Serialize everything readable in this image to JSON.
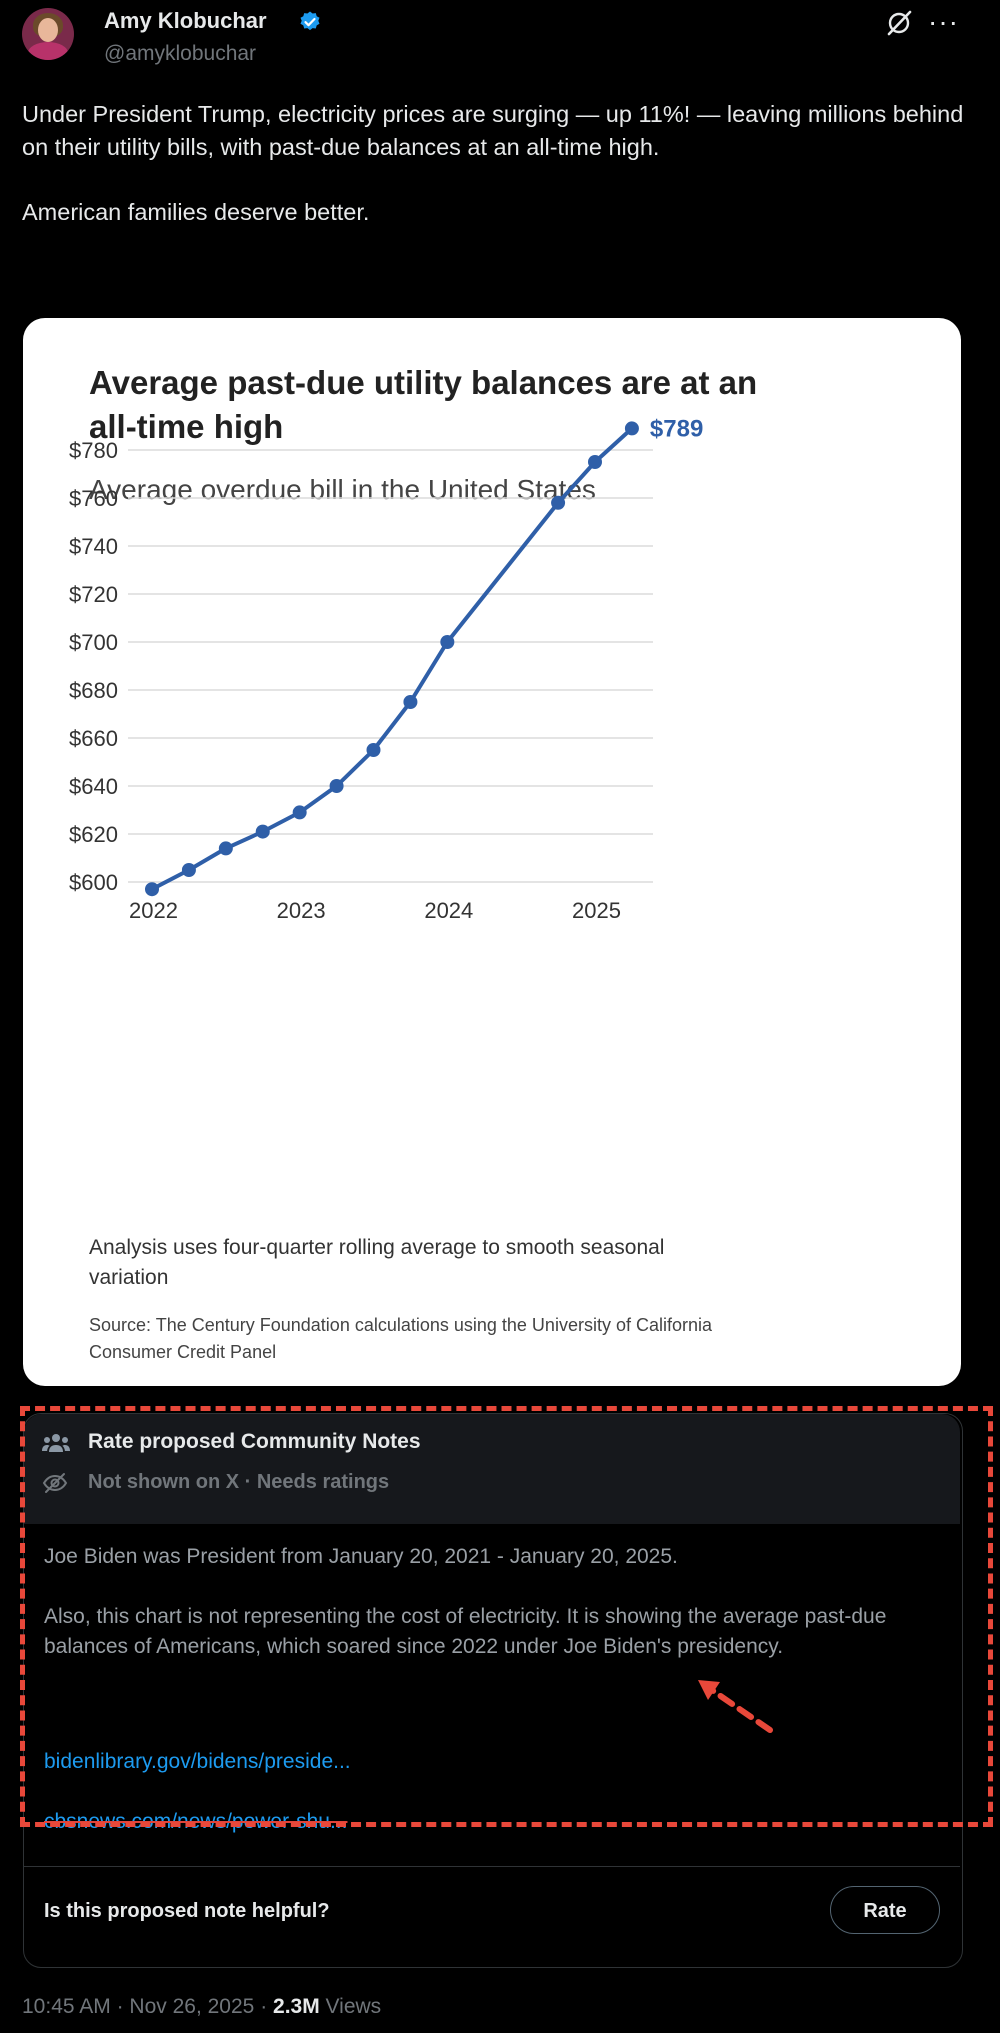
{
  "post": {
    "author_name": "Amy Klobuchar",
    "author_handle": "@amyklobuchar",
    "paragraphs": [
      "Under President Trump, electricity prices are surging — up 11%! — leaving millions behind on their utility bills, with past-due balances at an all-time high.",
      "American families deserve better."
    ],
    "time": "10:45 AM",
    "date": "Nov 26, 2025",
    "views_count": "2.3M",
    "views_label": "Views"
  },
  "chart_data": {
    "type": "line",
    "title": "Average past-due utility balances are at an all-time high",
    "title_lines": [
      "Average past-due utility balances are at an",
      "all-time high"
    ],
    "subtitle": "Average overdue bill in the United States",
    "x": [
      2022.0,
      2022.25,
      2022.5,
      2022.75,
      2023.0,
      2023.25,
      2023.5,
      2023.75,
      2024.0,
      2024.75,
      2025.0,
      2025.25
    ],
    "values": [
      597,
      605,
      614,
      621,
      629,
      640,
      655,
      675,
      700,
      758,
      775,
      789
    ],
    "xlim": [
      2022,
      2025.35
    ],
    "ylim": [
      600,
      790
    ],
    "x_ticks": [
      2022,
      2023,
      2024,
      2025
    ],
    "x_tick_labels": [
      "2022",
      "2023",
      "2024",
      "2025"
    ],
    "y_ticks": [
      600,
      620,
      640,
      660,
      680,
      700,
      720,
      740,
      760,
      780
    ],
    "y_tick_labels": [
      "$600",
      "$620",
      "$640",
      "$660",
      "$680",
      "$700",
      "$720",
      "$740",
      "$760",
      "$780"
    ],
    "end_label": "$789",
    "grid": true,
    "color": "#2f5fa8",
    "note_lines": [
      "Analysis uses four-quarter rolling average to smooth seasonal",
      "variation"
    ],
    "source_lines": [
      "Source: The Century Foundation calculations using the University of California",
      "Consumer Credit Panel"
    ]
  },
  "community_note": {
    "title": "Rate proposed Community Notes",
    "status": "Not shown on X · Needs ratings",
    "paragraphs": [
      "Joe Biden was President from January 20, 2021 - January 20, 2025.",
      "Also, this chart is not representing the cost of electricity. It is showing the average past-due balances of Americans, which soared since 2022 under Joe Biden's presidency."
    ],
    "link1": "bidenlibrary.gov/bidens/preside...",
    "link2": "cbsnews.com/news/power-shu...",
    "question": "Is this proposed note helpful?",
    "rate_label": "Rate"
  },
  "colors": {
    "background": "#000000",
    "link": "#1d9bf0",
    "annotation_red": "#e8483a",
    "chart_line": "#2f5fa8"
  }
}
